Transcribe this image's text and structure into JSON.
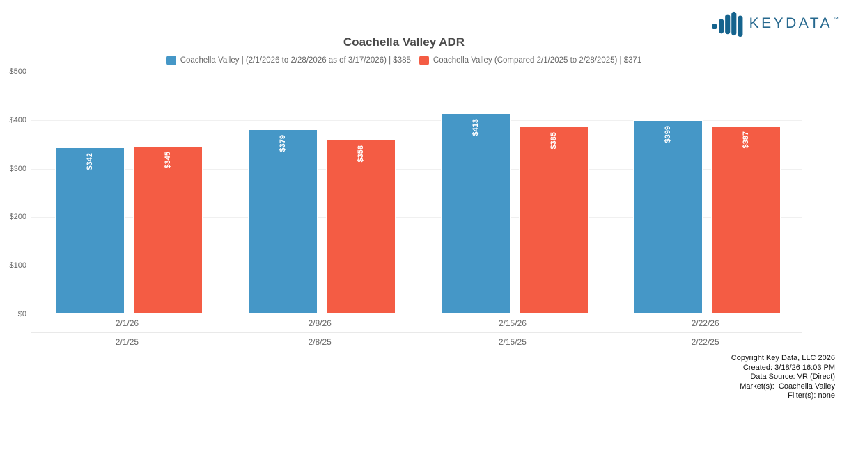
{
  "logo": {
    "brand": "KEYDATA",
    "trademark": "™"
  },
  "chart_data": {
    "type": "bar",
    "title": "Coachella Valley ADR",
    "xlabel": "",
    "ylabel": "",
    "ylim": [
      0,
      500
    ],
    "ytick_values": [
      0,
      100,
      200,
      300,
      400,
      500
    ],
    "ytick_labels": [
      "$0",
      "$100",
      "$200",
      "$300",
      "$400",
      "$500"
    ],
    "grid": true,
    "legend_position": "top",
    "categories_primary": [
      "2/1/26",
      "2/8/26",
      "2/15/26",
      "2/22/26"
    ],
    "categories_compare": [
      "2/1/25",
      "2/8/25",
      "2/15/25",
      "2/22/25"
    ],
    "series": [
      {
        "name": "Coachella Valley | (2/1/2026 to 2/28/2026 as of 3/17/2026) | $385",
        "color": "#4597c7",
        "values": [
          342,
          379,
          413,
          399
        ],
        "labels": [
          "$342",
          "$379",
          "$413",
          "$399"
        ]
      },
      {
        "name": "Coachella Valley (Compared 2/1/2025 to 2/28/2025) | $371",
        "color": "#f45c44",
        "values": [
          345,
          358,
          385,
          387
        ],
        "labels": [
          "$345",
          "$358",
          "$385",
          "$387"
        ]
      }
    ]
  },
  "footer": {
    "lines": [
      "Copyright Key Data, LLC 2026",
      "Created: 3/18/26 16:03 PM",
      "Data Source: VR (Direct)",
      "Market(s):  Coachella Valley",
      "Filter(s): none"
    ]
  }
}
